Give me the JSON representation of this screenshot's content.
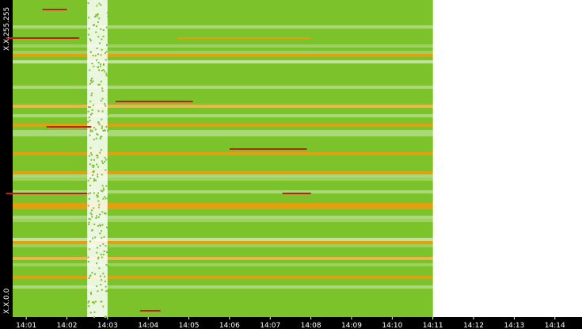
{
  "chart_data": {
    "type": "heatmap",
    "title": "",
    "xlabel": "",
    "ylabel": "",
    "x_tick_labels": [
      "14:01",
      "14:02",
      "14:03",
      "14:04",
      "14:05",
      "14:06",
      "14:07",
      "14:08",
      "14:09",
      "14:10",
      "14:11",
      "14:12",
      "14:13",
      "14:14"
    ],
    "y_tick_labels": [
      "X.X.255.255",
      "X.X.0.0"
    ],
    "x_range": [
      "14:00:40",
      "14:14:40"
    ],
    "data_end": "14:11",
    "y_range": [
      "X.X.0.0",
      "X.X.255.255"
    ],
    "colors": {
      "background": "#000000",
      "plot_empty": "#ffffff",
      "low": "#7cc22a",
      "mid": "#e0a010",
      "high": "#c02010",
      "sparse": "#a8d878"
    },
    "sparse_period": [
      "14:02:30",
      "14:03:00"
    ],
    "hot_bands": [
      {
        "y_frac": 0.03,
        "x_start": "14:01.4",
        "x_end": "14:02.0",
        "level": "high"
      },
      {
        "y_frac": 0.12,
        "x_start": "14:00.5",
        "x_end": "14:02.3",
        "level": "high"
      },
      {
        "y_frac": 0.12,
        "x_start": "14:04.7",
        "x_end": "14:08.0",
        "level": "mid"
      },
      {
        "y_frac": 0.32,
        "x_start": "14:03.2",
        "x_end": "14:05.1",
        "level": "high"
      },
      {
        "y_frac": 0.4,
        "x_start": "14:01.5",
        "x_end": "14:02.6",
        "level": "high"
      },
      {
        "y_frac": 0.47,
        "x_start": "14:06.0",
        "x_end": "14:07.9",
        "level": "high"
      },
      {
        "y_frac": 0.61,
        "x_start": "14:00.5",
        "x_end": "14:02.5",
        "level": "high"
      },
      {
        "y_frac": 0.61,
        "x_start": "14:07.3",
        "x_end": "14:08.0",
        "level": "high"
      },
      {
        "y_frac": 0.98,
        "x_start": "14:03.8",
        "x_end": "14:04.3",
        "level": "high"
      }
    ]
  }
}
